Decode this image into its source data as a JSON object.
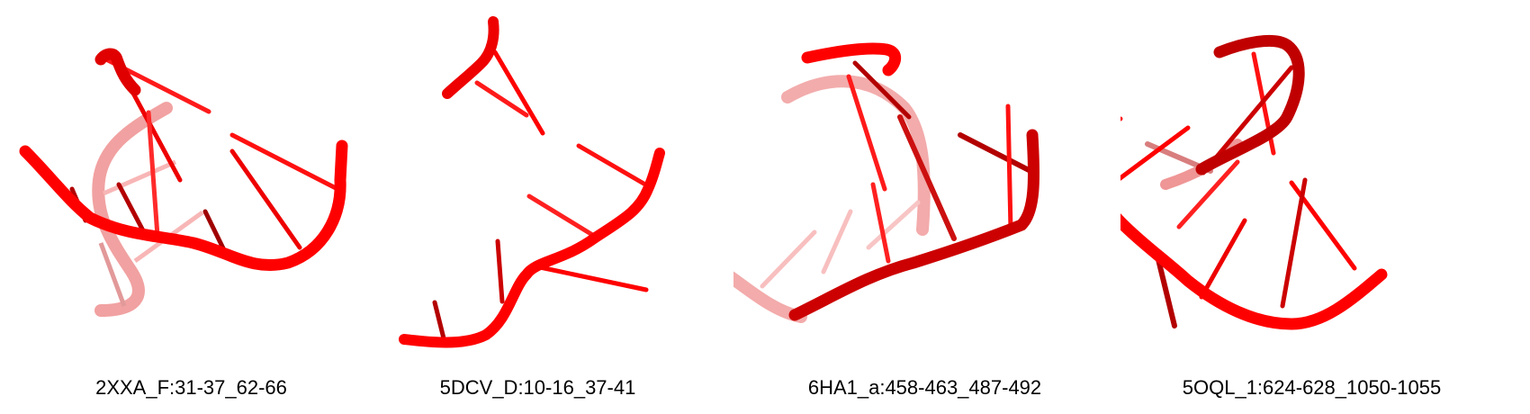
{
  "panels": [
    {
      "caption": "2XXA_F:31-37_62-66",
      "icon": "rna-backbone-structure"
    },
    {
      "caption": "5DCV_D:10-16_37-41",
      "icon": "rna-backbone-structure"
    },
    {
      "caption": "6HA1_a:458-463_487-492",
      "icon": "rna-backbone-structure"
    },
    {
      "caption": "5OQL_1:624-628_1050-1055",
      "icon": "rna-backbone-structure"
    }
  ],
  "colors": {
    "backbone": "#ff0000",
    "backbone_dark": "#b30000",
    "backbone_faded": "#f08080",
    "caption_text": "#000000",
    "background": "#ffffff"
  }
}
